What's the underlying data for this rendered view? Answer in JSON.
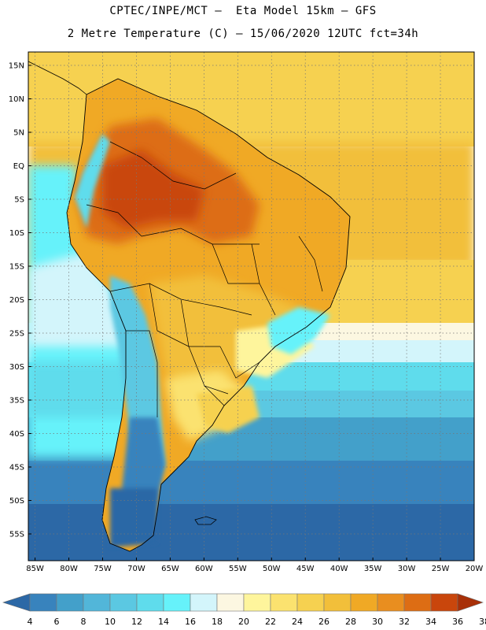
{
  "header": {
    "line1": "CPTEC/INPE/MCT –  Eta Model 15km – GFS",
    "line2": "2 Metre Temperature (C) – 15/06/2020 12UTC fct=34h"
  },
  "map": {
    "lat_labels": [
      "15N",
      "10N",
      "5N",
      "EQ",
      "5S",
      "10S",
      "15S",
      "20S",
      "25S",
      "30S",
      "35S",
      "40S",
      "45S",
      "50S",
      "55S"
    ],
    "lon_labels": [
      "85W",
      "80W",
      "75W",
      "70W",
      "65W",
      "60W",
      "55W",
      "50W",
      "45W",
      "40W",
      "35W",
      "30W",
      "25W",
      "20W"
    ],
    "lat_range": [
      17,
      -59
    ],
    "lon_range": [
      -86,
      -20
    ]
  },
  "colorbar": {
    "labels": [
      "4",
      "6",
      "8",
      "10",
      "12",
      "14",
      "16",
      "18",
      "20",
      "22",
      "24",
      "26",
      "28",
      "30",
      "32",
      "34",
      "36",
      "38"
    ],
    "colors": [
      "#2c68a6",
      "#3883bd",
      "#43a0ca",
      "#52b6d9",
      "#5bc8e2",
      "#5fdcec",
      "#66f2fa",
      "#d3f5fb",
      "#fcf7e1",
      "#fef59c",
      "#fbe26f",
      "#f6d150",
      "#f2bf3a",
      "#f0a925",
      "#e98e1f",
      "#dd6d14",
      "#c9460c",
      "#a83008"
    ]
  }
}
